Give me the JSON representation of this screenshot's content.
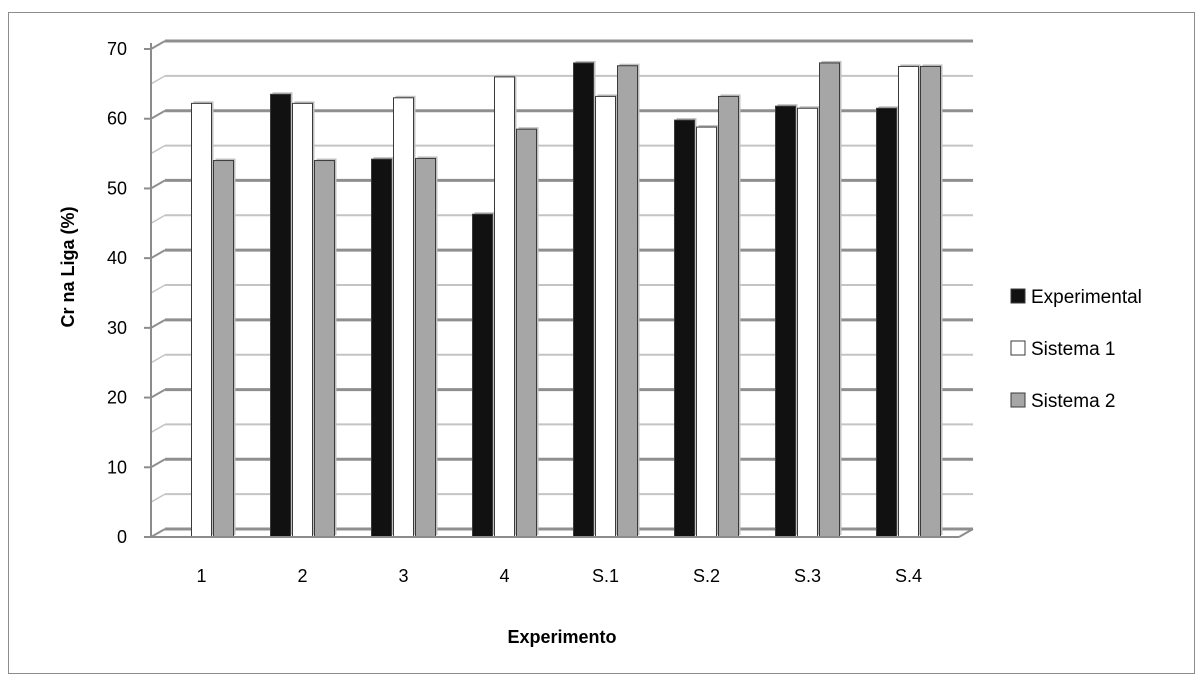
{
  "chart_data": {
    "type": "bar",
    "title": "",
    "xlabel": "Experimento",
    "ylabel": "Cr na Liga (%)",
    "ylim": [
      0,
      70
    ],
    "yticks": [
      0,
      10,
      20,
      30,
      40,
      50,
      60,
      70
    ],
    "grid": true,
    "legend_position": "right",
    "categories": [
      "1",
      "2",
      "3",
      "4",
      "S.1",
      "S.2",
      "S.3",
      "S.4"
    ],
    "series": [
      {
        "name": "Experimental",
        "color": "#111111",
        "values": [
          0,
          63.5,
          54.2,
          46.3,
          68,
          59.8,
          61.8,
          61.5
        ]
      },
      {
        "name": "Sistema 1",
        "color": "#ffffff",
        "values": [
          62.2,
          62.2,
          63,
          66,
          63.2,
          58.8,
          61.5,
          67.5
        ]
      },
      {
        "name": "Sistema 2",
        "color": "#a6a6a6",
        "values": [
          54,
          54,
          54.3,
          58.5,
          67.6,
          63.2,
          68,
          67.5
        ]
      }
    ]
  }
}
